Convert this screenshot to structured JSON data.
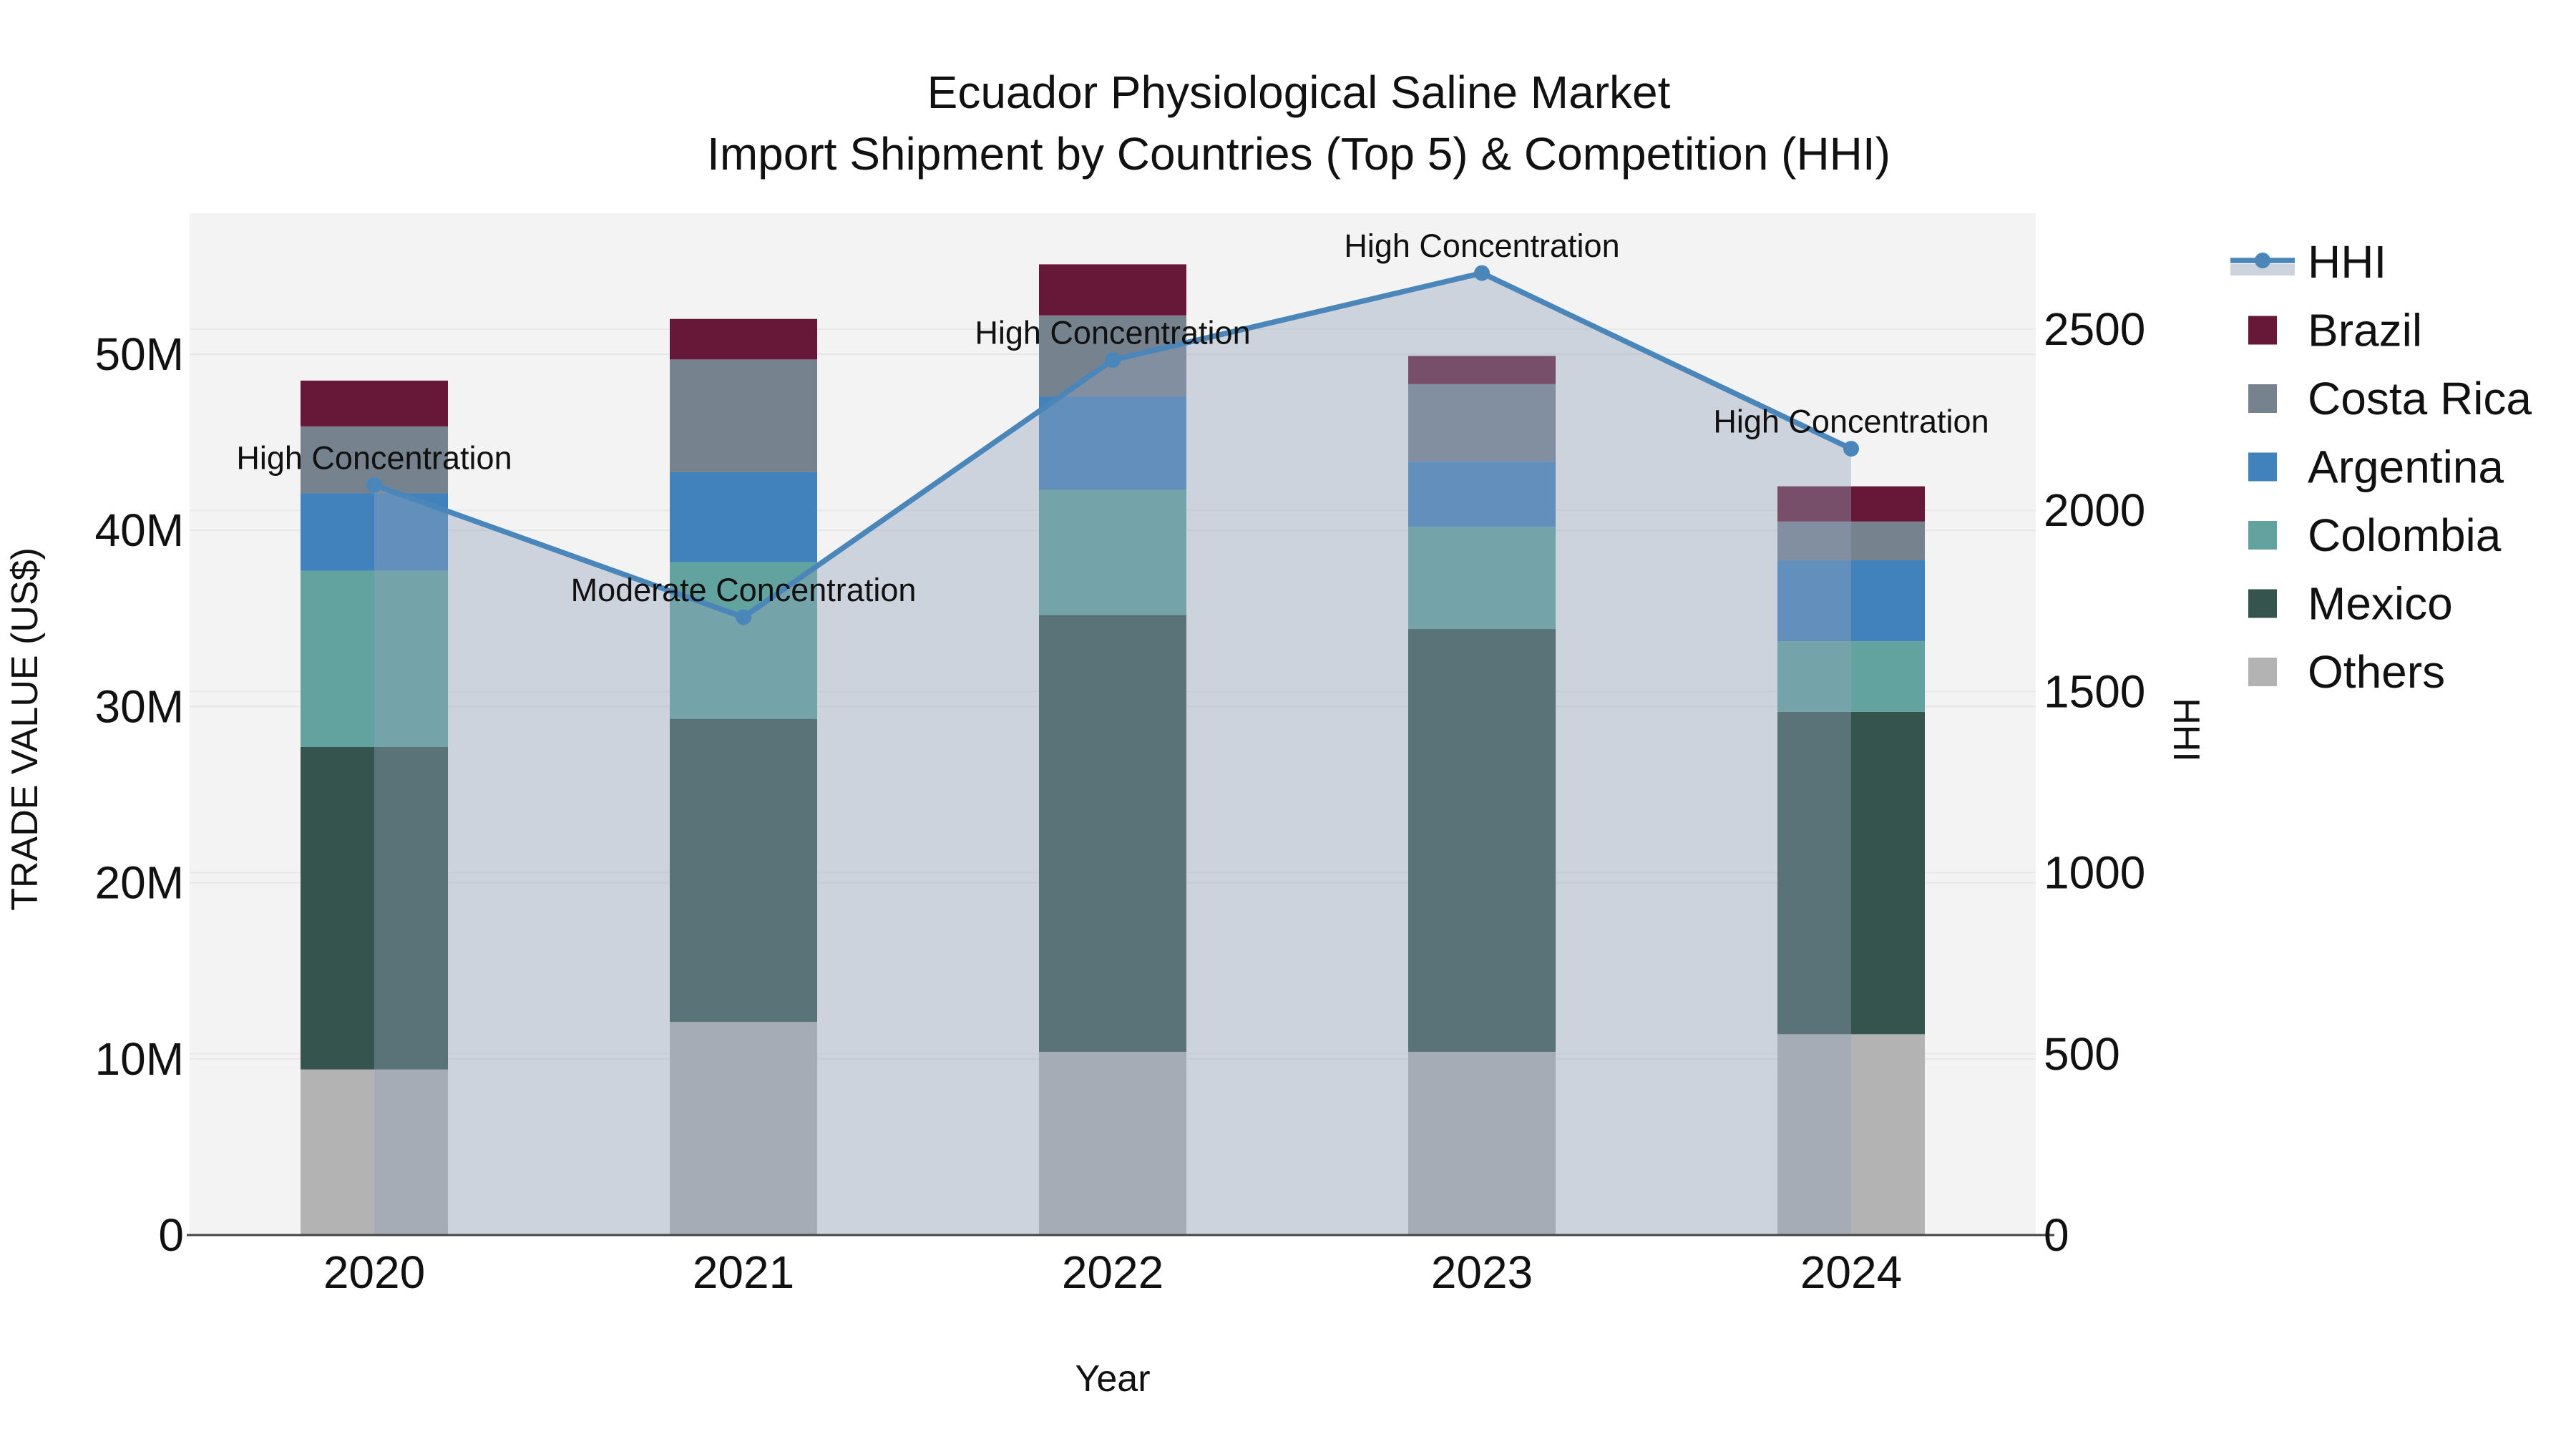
{
  "chart_data": {
    "type": "combo: stacked-bar + line",
    "title": "Ecuador Physiological Saline Market",
    "subtitle": "Import Shipment by Countries (Top 5) & Competition (HHI)",
    "xlabel": "Year",
    "ylabel": "TRADE VALUE (US$)",
    "y2label": "HHI",
    "categories": [
      "2020",
      "2021",
      "2022",
      "2023",
      "2024"
    ],
    "y_tick_labels": [
      "0",
      "10M",
      "20M",
      "30M",
      "40M",
      "50M"
    ],
    "y_tick_values_millions": [
      0,
      10,
      20,
      30,
      40,
      50
    ],
    "y2_tick_labels": [
      "0",
      "500",
      "1000",
      "1500",
      "2000",
      "2500"
    ],
    "y2_tick_values": [
      0,
      500,
      1000,
      1500,
      2000,
      2500
    ],
    "ylim_millions": [
      0,
      58
    ],
    "y2lim": [
      0,
      2820
    ],
    "grid": true,
    "legend_position": "right",
    "bar_series_bottom_to_top": [
      {
        "name": "Others",
        "color": "#b3b3b3",
        "values_millions": [
          9.4,
          12.1,
          10.4,
          10.4,
          11.4
        ]
      },
      {
        "name": "Mexico",
        "color": "#35544e",
        "values_millions": [
          18.3,
          17.2,
          24.8,
          24.0,
          18.3
        ]
      },
      {
        "name": "Colombia",
        "color": "#62a3a0",
        "values_millions": [
          10.0,
          8.9,
          7.1,
          5.8,
          4.0
        ]
      },
      {
        "name": "Argentina",
        "color": "#4282bc",
        "values_millions": [
          4.4,
          5.1,
          5.3,
          3.7,
          4.6
        ]
      },
      {
        "name": "Costa Rica",
        "color": "#76838f",
        "values_millions": [
          3.8,
          6.4,
          4.6,
          4.4,
          2.2
        ]
      },
      {
        "name": "Brazil",
        "color": "#671838",
        "values_millions": [
          2.6,
          2.3,
          2.9,
          1.6,
          2.0
        ]
      }
    ],
    "bar_totals_millions": [
      48.5,
      52.0,
      55.1,
      49.9,
      42.5
    ],
    "line_series": {
      "name": "HHI",
      "color": "#4a86ba",
      "area_fill_color": "rgba(148,163,185,0.4)",
      "legend_band_color": "#ccd3dc",
      "values": [
        2070,
        1705,
        2415,
        2655,
        2170
      ]
    },
    "annotations": [
      {
        "category": "2020",
        "text": "High Concentration"
      },
      {
        "category": "2021",
        "text": "Moderate Concentration"
      },
      {
        "category": "2022",
        "text": "High Concentration"
      },
      {
        "category": "2023",
        "text": "High Concentration"
      },
      {
        "category": "2024",
        "text": "High Concentration"
      }
    ],
    "legend_items_top_to_bottom": [
      "HHI",
      "Brazil",
      "Costa Rica",
      "Argentina",
      "Colombia",
      "Mexico",
      "Others"
    ]
  }
}
